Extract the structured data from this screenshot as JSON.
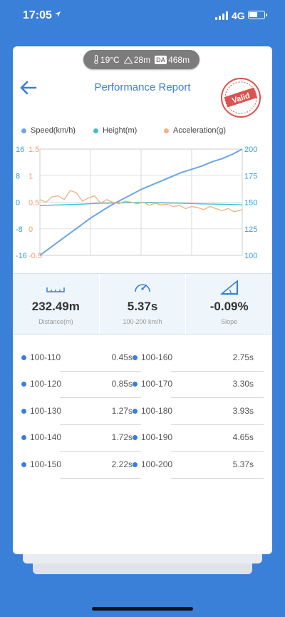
{
  "status": {
    "time": "17:05",
    "location_icon": "location-arrow-icon",
    "network": "4G",
    "battery_percent": 0.5
  },
  "weather": {
    "temperature": "19°C",
    "altitude": "28m",
    "density_badge": "DA",
    "density_altitude": "468m"
  },
  "header": {
    "title": "Performance Report",
    "stamp_text": "Valid",
    "stamp_color": "#d9534f"
  },
  "legend": [
    {
      "label": "Speed(km/h)",
      "color": "#6aa6e6"
    },
    {
      "label": "Height(m)",
      "color": "#3fc0c8"
    },
    {
      "label": "Acceleration(g)",
      "color": "#f0b48a"
    }
  ],
  "chart_data": {
    "type": "line",
    "left_axis_height": {
      "ticks": [
        "16",
        "8",
        "0",
        "-8",
        "-16"
      ],
      "color": "#3a9ed8",
      "range": [
        -16,
        16
      ]
    },
    "left_axis_accel": {
      "ticks": [
        "1.5",
        "1",
        "0.5",
        "0",
        "-0.5"
      ],
      "color": "#f0a070",
      "range": [
        -0.5,
        1.5
      ]
    },
    "right_axis_speed": {
      "ticks": [
        "200",
        "175",
        "150",
        "125",
        "100"
      ],
      "color": "#3a9ed8",
      "range": [
        100,
        200
      ]
    },
    "grid": true,
    "series": [
      {
        "name": "Speed(km/h)",
        "axis": "right",
        "color": "#6aa6e6",
        "x": [
          0,
          0.05,
          0.1,
          0.15,
          0.2,
          0.25,
          0.3,
          0.35,
          0.4,
          0.45,
          0.5,
          0.55,
          0.6,
          0.65,
          0.7,
          0.75,
          0.8,
          0.85,
          0.9,
          0.95,
          1.0
        ],
        "values": [
          100,
          107,
          114,
          121,
          128,
          135,
          141,
          147,
          152,
          157,
          162,
          166,
          170,
          174,
          178,
          181,
          184,
          188,
          191,
          195,
          200
        ]
      },
      {
        "name": "Height(m)",
        "axis": "left_height",
        "color": "#3fc0c8",
        "x": [
          0,
          0.1,
          0.2,
          0.3,
          0.4,
          0.5,
          0.6,
          0.7,
          0.8,
          0.9,
          1.0
        ],
        "values": [
          -1.0,
          -0.8,
          -0.6,
          -0.3,
          -0.2,
          -0.1,
          -0.2,
          -0.3,
          -0.5,
          -0.6,
          -0.8
        ]
      },
      {
        "name": "Acceleration(g)",
        "axis": "left_accel",
        "color": "#f0b48a",
        "x": [
          0,
          0.03,
          0.06,
          0.09,
          0.12,
          0.15,
          0.18,
          0.21,
          0.24,
          0.27,
          0.3,
          0.33,
          0.36,
          0.39,
          0.42,
          0.45,
          0.48,
          0.51,
          0.54,
          0.57,
          0.6,
          0.63,
          0.66,
          0.69,
          0.72,
          0.75,
          0.78,
          0.81,
          0.84,
          0.87,
          0.9,
          0.93,
          0.96,
          1.0
        ],
        "values": [
          0.55,
          0.5,
          0.6,
          0.62,
          0.55,
          0.72,
          0.68,
          0.52,
          0.58,
          0.62,
          0.48,
          0.55,
          0.5,
          0.47,
          0.52,
          0.5,
          0.47,
          0.5,
          0.44,
          0.48,
          0.45,
          0.46,
          0.42,
          0.44,
          0.38,
          0.42,
          0.4,
          0.36,
          0.42,
          0.38,
          0.34,
          0.38,
          0.32,
          0.36
        ]
      }
    ]
  },
  "stats": [
    {
      "icon": "ruler-icon",
      "value": "232.49m",
      "label": "Distance(m)"
    },
    {
      "icon": "speedometer-icon",
      "value": "5.37s",
      "label": "100-200 km/h"
    },
    {
      "icon": "slope-icon",
      "value": "-0.09%",
      "label": "Slope"
    }
  ],
  "splits_left": [
    {
      "range": "100-110",
      "time": "0.45s"
    },
    {
      "range": "100-120",
      "time": "0.85s"
    },
    {
      "range": "100-130",
      "time": "1.27s"
    },
    {
      "range": "100-140",
      "time": "1.72s"
    },
    {
      "range": "100-150",
      "time": "2.22s"
    }
  ],
  "splits_right": [
    {
      "range": "100-160",
      "time": "2.75s"
    },
    {
      "range": "100-170",
      "time": "3.30s"
    },
    {
      "range": "100-180",
      "time": "3.93s"
    },
    {
      "range": "100-190",
      "time": "4.65s"
    },
    {
      "range": "100-200",
      "time": "5.37s"
    }
  ]
}
